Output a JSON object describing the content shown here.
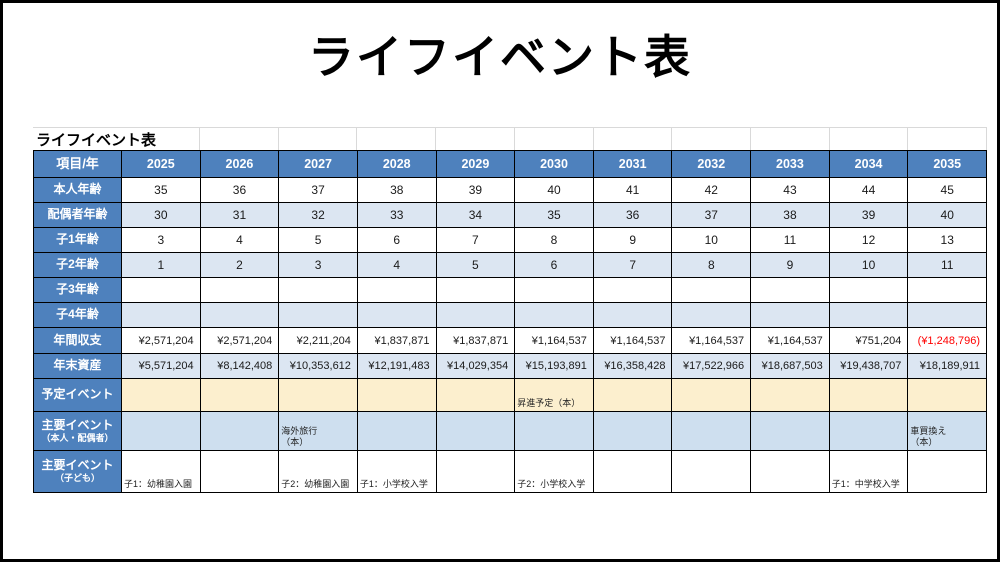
{
  "page": {
    "main_title": "ライフイベント表",
    "table_title": "ライフイベント表"
  },
  "colors": {
    "header_blue": "#4E81BD",
    "stripe_blue": "#DCE6F2",
    "event_blue": "#CEDFEF",
    "cream": "#FCEFCE",
    "negative_red": "#FF0000"
  },
  "table": {
    "corner_label": "項目/年",
    "years": [
      "2025",
      "2026",
      "2027",
      "2028",
      "2029",
      "2030",
      "2031",
      "2032",
      "2033",
      "2034",
      "2035"
    ],
    "rows": [
      {
        "key": "honnin-age",
        "label": "本人年齢",
        "type": "age",
        "stripe": false,
        "values": [
          "35",
          "36",
          "37",
          "38",
          "39",
          "40",
          "41",
          "42",
          "43",
          "44",
          "45"
        ]
      },
      {
        "key": "spouse-age",
        "label": "配偶者年齢",
        "type": "age",
        "stripe": true,
        "values": [
          "30",
          "31",
          "32",
          "33",
          "34",
          "35",
          "36",
          "37",
          "38",
          "39",
          "40"
        ]
      },
      {
        "key": "child1-age",
        "label": "子1年齢",
        "type": "age",
        "stripe": false,
        "values": [
          "3",
          "4",
          "5",
          "6",
          "7",
          "8",
          "9",
          "10",
          "11",
          "12",
          "13"
        ]
      },
      {
        "key": "child2-age",
        "label": "子2年齢",
        "type": "age",
        "stripe": true,
        "values": [
          "1",
          "2",
          "3",
          "4",
          "5",
          "6",
          "7",
          "8",
          "9",
          "10",
          "11"
        ]
      },
      {
        "key": "child3-age",
        "label": "子3年齢",
        "type": "age",
        "stripe": false,
        "values": [
          "",
          "",
          "",
          "",
          "",
          "",
          "",
          "",
          "",
          "",
          ""
        ]
      },
      {
        "key": "child4-age",
        "label": "子4年齢",
        "type": "age",
        "stripe": true,
        "values": [
          "",
          "",
          "",
          "",
          "",
          "",
          "",
          "",
          "",
          "",
          ""
        ]
      },
      {
        "key": "annual-balance",
        "label": "年間収支",
        "type": "money",
        "stripe": false,
        "values": [
          "¥2,571,204",
          "¥2,571,204",
          "¥2,211,204",
          "¥1,837,871",
          "¥1,837,871",
          "¥1,164,537",
          "¥1,164,537",
          "¥1,164,537",
          "¥1,164,537",
          "¥751,204",
          "(¥1,248,796)"
        ]
      },
      {
        "key": "year-end-assets",
        "label": "年末資産",
        "type": "money",
        "stripe": true,
        "values": [
          "¥5,571,204",
          "¥8,142,408",
          "¥10,353,612",
          "¥12,191,483",
          "¥14,029,354",
          "¥15,193,891",
          "¥16,358,428",
          "¥17,522,966",
          "¥18,687,503",
          "¥19,438,707",
          "¥18,189,911"
        ]
      },
      {
        "key": "planned-events",
        "label": "予定イベント",
        "type": "event",
        "bg": "cream",
        "values": [
          "",
          "",
          "",
          "",
          "",
          "昇進予定（本）",
          "",
          "",
          "",
          "",
          ""
        ]
      },
      {
        "key": "main-events-adult",
        "label": "主要イベント",
        "sublabel": "（本人・配偶者）",
        "type": "event",
        "bg": "evblue",
        "values": [
          "",
          "",
          "海外旅行\n（本）",
          "",
          "",
          "",
          "",
          "",
          "",
          "",
          "車買換え\n（本）"
        ]
      },
      {
        "key": "main-events-children",
        "label": "主要イベント",
        "sublabel": "（子ども）",
        "type": "event",
        "bg": "white",
        "values": [
          "子1：幼稚園入園",
          "",
          "子2：幼稚園入園",
          "子1：小学校入学",
          "",
          "子2：小学校入学",
          "",
          "",
          "",
          "子1：中学校入学",
          ""
        ]
      }
    ]
  }
}
